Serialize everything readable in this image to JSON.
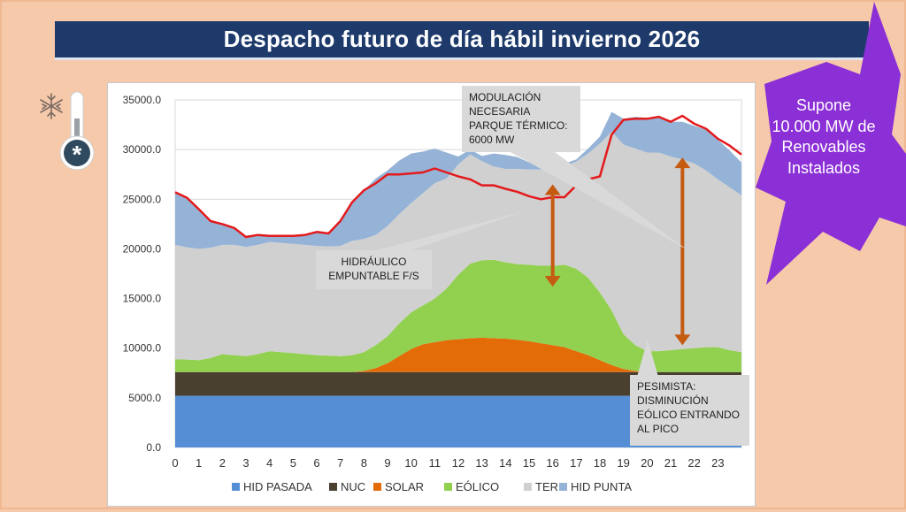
{
  "slide": {
    "title": "Despacho futuro de día hábil invierno 2026",
    "star_note": "Supone 10.000 MW de Renovables Instalados",
    "icon": "winter-thermometer-icon"
  },
  "annotations": {
    "modulacion": "MODULACIÓN NECESARIA PARQUE TÉRMICO: 6000 MW",
    "hidraulico": "HIDRÁULICO EMPUNTABLE F/S",
    "pesimista": "PESIMISTA: DISMINUCIÓN EÓLICO ENTRANDO AL PICO"
  },
  "colors": {
    "hid_pasada": "#558ed5",
    "nuc": "#4a4030",
    "solar": "#e36c09",
    "eolico": "#92d050",
    "ter": "#d0d0d0",
    "hid_punta": "#95b3d7",
    "total_line": "#e31a1c",
    "arrow": "#c55a11",
    "star": "#8b2fd6"
  },
  "chart_data": {
    "type": "area",
    "stacked": true,
    "x_ticks": [
      "0",
      "1",
      "2",
      "3",
      "4",
      "5",
      "6",
      "7",
      "8",
      "9",
      "10",
      "11",
      "12",
      "13",
      "14",
      "15",
      "16",
      "17",
      "18",
      "19",
      "20",
      "21",
      "22",
      "23"
    ],
    "y_ticks": [
      "0.0",
      "5000.0",
      "10000.0",
      "15000.0",
      "20000.0",
      "25000.0",
      "30000.0",
      "35000.0"
    ],
    "ylim": [
      0,
      35000
    ],
    "xlim": [
      0,
      24
    ],
    "legend_position": "bottom",
    "legend": [
      "HID PASADA",
      "NUC",
      "SOLAR",
      "EÓLICO",
      "TER",
      "HID PUNTA"
    ],
    "x": [
      0,
      0.5,
      1,
      1.5,
      2,
      2.5,
      3,
      3.5,
      4,
      4.5,
      5,
      5.5,
      6,
      6.5,
      7,
      7.5,
      8,
      8.5,
      9,
      9.5,
      10,
      10.5,
      11,
      11.5,
      12,
      12.5,
      13,
      13.5,
      14,
      14.5,
      15,
      15.5,
      16,
      16.5,
      17,
      17.5,
      18,
      18.5,
      19,
      19.5,
      20,
      20.5,
      21,
      21.5,
      22,
      22.5,
      23,
      23.5,
      24
    ],
    "series": [
      {
        "name": "HID PASADA",
        "values": [
          5200,
          5200,
          5200,
          5200,
          5200,
          5200,
          5200,
          5200,
          5200,
          5200,
          5200,
          5200,
          5200,
          5200,
          5200,
          5200,
          5200,
          5200,
          5200,
          5200,
          5200,
          5200,
          5200,
          5200,
          5200,
          5200,
          5200,
          5200,
          5200,
          5200,
          5200,
          5200,
          5200,
          5200,
          5200,
          5200,
          5200,
          5200,
          5200,
          5200,
          5200,
          5200,
          5200,
          5200,
          5200,
          5200,
          5200,
          5200,
          5200
        ]
      },
      {
        "name": "NUC",
        "values": [
          2400,
          2400,
          2400,
          2400,
          2400,
          2400,
          2400,
          2400,
          2400,
          2400,
          2400,
          2400,
          2400,
          2400,
          2400,
          2400,
          2400,
          2400,
          2400,
          2400,
          2400,
          2400,
          2400,
          2400,
          2400,
          2400,
          2400,
          2400,
          2400,
          2400,
          2400,
          2400,
          2400,
          2400,
          2400,
          2400,
          2400,
          2400,
          2400,
          2400,
          2400,
          2400,
          2400,
          2400,
          2400,
          2400,
          2400,
          2400,
          2400
        ]
      },
      {
        "name": "SOLAR",
        "values": [
          0,
          0,
          0,
          0,
          0,
          0,
          0,
          0,
          0,
          0,
          0,
          0,
          0,
          0,
          0,
          0,
          100,
          400,
          900,
          1600,
          2300,
          2800,
          3000,
          3200,
          3300,
          3400,
          3450,
          3400,
          3350,
          3250,
          3100,
          2900,
          2700,
          2500,
          2100,
          1700,
          1200,
          700,
          300,
          100,
          0,
          0,
          0,
          0,
          0,
          0,
          0,
          0,
          0
        ]
      },
      {
        "name": "EÓLICO",
        "values": [
          1300,
          1250,
          1200,
          1400,
          1800,
          1700,
          1600,
          1800,
          2100,
          2000,
          1900,
          1800,
          1700,
          1650,
          1600,
          1700,
          1900,
          2300,
          2700,
          3300,
          3700,
          3900,
          4400,
          5200,
          6500,
          7500,
          7800,
          7900,
          7700,
          7600,
          7700,
          7800,
          8000,
          8300,
          8300,
          7800,
          6800,
          5500,
          3500,
          2600,
          2100,
          2100,
          2200,
          2300,
          2400,
          2500,
          2500,
          2200,
          2000
        ]
      },
      {
        "name": "TER",
        "values": [
          11500,
          11300,
          11200,
          11100,
          11000,
          11100,
          11000,
          11000,
          11000,
          11000,
          11000,
          11000,
          11000,
          11000,
          11100,
          11500,
          11400,
          11100,
          11100,
          11000,
          11000,
          11300,
          11600,
          11100,
          11100,
          11000,
          10000,
          9400,
          9400,
          9600,
          9600,
          9700,
          9700,
          9900,
          10800,
          12500,
          15000,
          18000,
          19100,
          19800,
          20000,
          20000,
          19500,
          19100,
          18600,
          17800,
          16900,
          16400,
          15800
        ]
      },
      {
        "name": "HID PUNTA",
        "values": [
          5300,
          5000,
          4000,
          2800,
          2100,
          1700,
          1000,
          1000,
          600,
          700,
          800,
          1000,
          1400,
          1300,
          2500,
          3900,
          4900,
          5700,
          5600,
          5400,
          5000,
          4200,
          3500,
          2600,
          800,
          500,
          500,
          1300,
          1400,
          1200,
          700,
          500,
          300,
          300,
          200,
          500,
          700,
          2000,
          2600,
          3200,
          3500,
          3600,
          3500,
          3800,
          3800,
          4100,
          4000,
          3700,
          3300
        ]
      }
    ],
    "total_line": [
      25700,
      25150,
      24000,
      22800,
      22500,
      22100,
      21200,
      21400,
      21300,
      21300,
      21300,
      21400,
      21700,
      21550,
      22800,
      24700,
      25900,
      26600,
      27500,
      27500,
      27600,
      27700,
      28100,
      27700,
      27300,
      27000,
      26400,
      26400,
      26050,
      25750,
      25300,
      25000,
      25200,
      25200,
      26400,
      27000,
      27300,
      31500,
      33000,
      33100,
      33100,
      33300,
      32800,
      33400,
      32600,
      32100,
      31100,
      30400,
      29500
    ]
  }
}
